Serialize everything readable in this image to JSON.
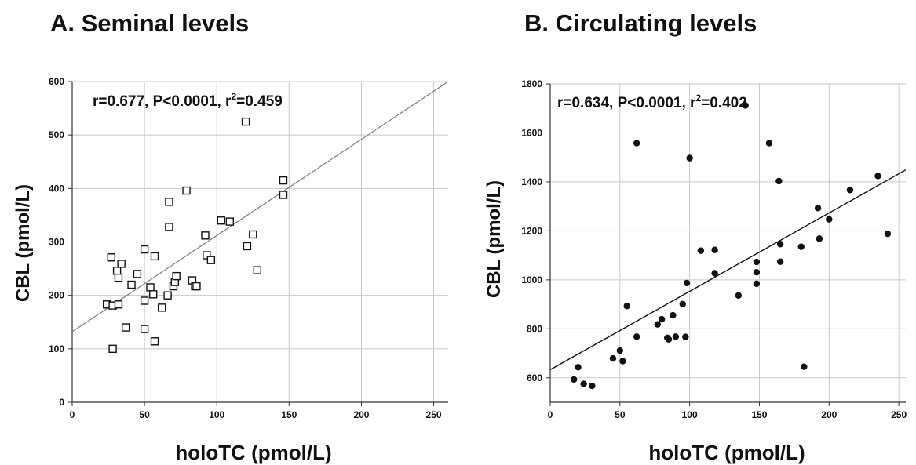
{
  "chart_data": [
    {
      "type": "scatter",
      "panel_title": "A. Seminal levels",
      "xlabel": "holoTC  (pmol/L)",
      "ylabel": "CBL (pmol/L)",
      "annotation": {
        "prefix": "r=0.677, P<0.0001, r",
        "sup": "2",
        "suffix": "=0.459"
      },
      "xlim": [
        0,
        260
      ],
      "ylim": [
        0,
        600
      ],
      "xticks": [
        0,
        50,
        100,
        150,
        200,
        250
      ],
      "yticks": [
        0,
        100,
        200,
        300,
        400,
        500,
        600
      ],
      "grid": true,
      "marker": "open-square",
      "fit_line": {
        "intercept": 132,
        "slope": 1.8
      },
      "points": [
        [
          24,
          183
        ],
        [
          27,
          271
        ],
        [
          28,
          100
        ],
        [
          28,
          181
        ],
        [
          31,
          246
        ],
        [
          32,
          183
        ],
        [
          32,
          233
        ],
        [
          34,
          259
        ],
        [
          37,
          140
        ],
        [
          41,
          220
        ],
        [
          45,
          240
        ],
        [
          50,
          190
        ],
        [
          50,
          286
        ],
        [
          50,
          137
        ],
        [
          54,
          215
        ],
        [
          56,
          202
        ],
        [
          57,
          114
        ],
        [
          57,
          273
        ],
        [
          62,
          177
        ],
        [
          66,
          200
        ],
        [
          67,
          375
        ],
        [
          67,
          328
        ],
        [
          70,
          217
        ],
        [
          71,
          225
        ],
        [
          72,
          236
        ],
        [
          79,
          396
        ],
        [
          83,
          228
        ],
        [
          85,
          217
        ],
        [
          86,
          217
        ],
        [
          92,
          312
        ],
        [
          93,
          275
        ],
        [
          96,
          266
        ],
        [
          103,
          340
        ],
        [
          109,
          338
        ],
        [
          120,
          525
        ],
        [
          121,
          292
        ],
        [
          125,
          314
        ],
        [
          128,
          247
        ],
        [
          146,
          415
        ],
        [
          146,
          388
        ]
      ]
    },
    {
      "type": "scatter",
      "panel_title": "B. Circulating levels",
      "xlabel": "holoTC  (pmol/L)",
      "ylabel": "CBL (pmol/L)",
      "annotation": {
        "prefix": "r=0.634, P<0.0001, r",
        "sup": "2",
        "suffix": "=0.402"
      },
      "xlim": [
        0,
        255
      ],
      "ylim": [
        500,
        1800
      ],
      "xticks": [
        0,
        50,
        100,
        150,
        200,
        250
      ],
      "yticks": [
        600,
        800,
        1000,
        1200,
        1400,
        1600,
        1800
      ],
      "grid": true,
      "marker": "filled-circle",
      "fit_line": {
        "intercept": 633,
        "slope": 3.2
      },
      "points": [
        [
          17,
          593
        ],
        [
          20,
          643
        ],
        [
          24,
          575
        ],
        [
          30,
          567
        ],
        [
          45,
          679
        ],
        [
          50,
          711
        ],
        [
          52,
          668
        ],
        [
          55,
          893
        ],
        [
          62,
          1558
        ],
        [
          62,
          768
        ],
        [
          77,
          818
        ],
        [
          80,
          839
        ],
        [
          84,
          763
        ],
        [
          85,
          757
        ],
        [
          88,
          855
        ],
        [
          90,
          768
        ],
        [
          95,
          901
        ],
        [
          97,
          767
        ],
        [
          98,
          987
        ],
        [
          100,
          1497
        ],
        [
          108,
          1119
        ],
        [
          118,
          1122
        ],
        [
          118,
          1027
        ],
        [
          135,
          936
        ],
        [
          140,
          1712
        ],
        [
          157,
          1558
        ],
        [
          148,
          1073
        ],
        [
          148,
          1031
        ],
        [
          148,
          984
        ],
        [
          164,
          1403
        ],
        [
          165,
          1146
        ],
        [
          165,
          1074
        ],
        [
          180,
          1135
        ],
        [
          182,
          645
        ],
        [
          192,
          1293
        ],
        [
          193,
          1168
        ],
        [
          200,
          1247
        ],
        [
          215,
          1367
        ],
        [
          235,
          1424
        ],
        [
          242,
          1188
        ]
      ]
    }
  ]
}
